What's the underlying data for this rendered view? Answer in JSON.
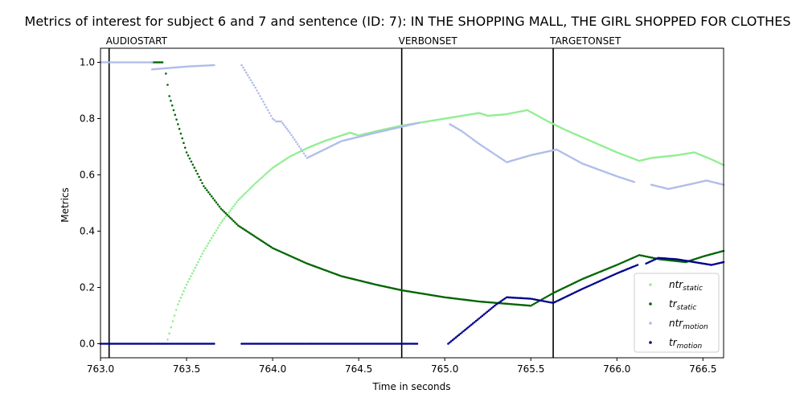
{
  "chart_data": {
    "type": "scatter",
    "title": "Metrics of interest for subject 6 and 7 and sentence (ID: 7): IN THE SHOPPING MALL, THE GIRL SHOPPED FOR CLOTHES",
    "xlabel": "Time in seconds",
    "ylabel": "Metrics",
    "xlim": [
      763.0,
      766.62
    ],
    "ylim": [
      -0.05,
      1.05
    ],
    "xticks": [
      763.0,
      763.5,
      764.0,
      764.5,
      765.0,
      765.5,
      766.0,
      766.5
    ],
    "xtick_labels": [
      "763.0",
      "763.5",
      "764.0",
      "764.5",
      "765.0",
      "765.5",
      "766.0",
      "766.5"
    ],
    "yticks": [
      0.0,
      0.2,
      0.4,
      0.6,
      0.8,
      1.0
    ],
    "ytick_labels": [
      "0.0",
      "0.2",
      "0.4",
      "0.6",
      "0.8",
      "1.0"
    ],
    "grid": false,
    "legend_position": "lower-right",
    "events": [
      {
        "label": "AUDIOSTART",
        "x": 763.05
      },
      {
        "label": "VERBONSET",
        "x": 764.75
      },
      {
        "label": "TARGETONSET",
        "x": 765.63
      }
    ],
    "series": [
      {
        "name": "ntr_static",
        "legend_base": "ntr",
        "legend_sub": "static",
        "color": "#90ee90",
        "segments": [
          [
            [
              763.39,
              0.015
            ],
            [
              763.42,
              0.08
            ],
            [
              763.45,
              0.14
            ],
            [
              763.5,
              0.21
            ],
            [
              763.55,
              0.27
            ],
            [
              763.6,
              0.33
            ],
            [
              763.7,
              0.43
            ],
            [
              763.8,
              0.51
            ],
            [
              763.9,
              0.57
            ],
            [
              764.0,
              0.625
            ],
            [
              764.1,
              0.665
            ],
            [
              764.2,
              0.695
            ],
            [
              764.3,
              0.72
            ],
            [
              764.4,
              0.74
            ],
            [
              764.45,
              0.75
            ],
            [
              764.5,
              0.74
            ],
            [
              764.6,
              0.755
            ],
            [
              764.75,
              0.775
            ],
            [
              764.9,
              0.79
            ],
            [
              765.0,
              0.8
            ],
            [
              765.1,
              0.81
            ],
            [
              765.2,
              0.82
            ],
            [
              765.25,
              0.81
            ],
            [
              765.35,
              0.815
            ],
            [
              765.48,
              0.83
            ],
            [
              765.6,
              0.79
            ],
            [
              765.7,
              0.76
            ],
            [
              765.85,
              0.72
            ],
            [
              766.0,
              0.68
            ],
            [
              766.13,
              0.65
            ],
            [
              766.2,
              0.66
            ],
            [
              766.35,
              0.67
            ],
            [
              766.45,
              0.68
            ],
            [
              766.55,
              0.655
            ],
            [
              766.62,
              0.635
            ]
          ]
        ]
      },
      {
        "name": "tr_static",
        "legend_base": "tr",
        "legend_sub": "static",
        "color": "#006400",
        "segments": [
          [
            [
              763.3,
              1.0
            ],
            [
              763.36,
              1.0
            ]
          ],
          [
            [
              763.38,
              0.96
            ],
            [
              763.4,
              0.88
            ],
            [
              763.45,
              0.78
            ],
            [
              763.5,
              0.68
            ],
            [
              763.6,
              0.56
            ],
            [
              763.7,
              0.48
            ],
            [
              763.8,
              0.42
            ],
            [
              764.0,
              0.34
            ],
            [
              764.2,
              0.285
            ],
            [
              764.4,
              0.24
            ],
            [
              764.6,
              0.21
            ],
            [
              764.75,
              0.19
            ],
            [
              765.0,
              0.165
            ],
            [
              765.2,
              0.15
            ],
            [
              765.4,
              0.14
            ],
            [
              765.5,
              0.135
            ],
            [
              765.63,
              0.18
            ],
            [
              765.8,
              0.23
            ],
            [
              766.0,
              0.28
            ],
            [
              766.13,
              0.315
            ],
            [
              766.25,
              0.3
            ],
            [
              766.4,
              0.29
            ],
            [
              766.5,
              0.31
            ],
            [
              766.62,
              0.33
            ]
          ]
        ]
      },
      {
        "name": "ntr_motion",
        "legend_base": "ntr",
        "legend_sub": "motion",
        "color": "#b0bcea",
        "segments": [
          [
            [
              763.0,
              1.0
            ],
            [
              763.3,
              1.0
            ]
          ],
          [
            [
              763.3,
              0.975
            ],
            [
              763.5,
              0.985
            ],
            [
              763.66,
              0.99
            ]
          ],
          [
            [
              763.82,
              0.99
            ],
            [
              763.9,
              0.91
            ],
            [
              764.0,
              0.8
            ],
            [
              764.02,
              0.79
            ],
            [
              764.05,
              0.79
            ],
            [
              764.1,
              0.75
            ],
            [
              764.2,
              0.66
            ],
            [
              764.3,
              0.69
            ],
            [
              764.4,
              0.72
            ],
            [
              764.6,
              0.75
            ],
            [
              764.85,
              0.785
            ]
          ],
          [
            [
              765.03,
              0.78
            ],
            [
              765.1,
              0.755
            ],
            [
              765.2,
              0.71
            ],
            [
              765.36,
              0.645
            ],
            [
              765.5,
              0.67
            ],
            [
              765.65,
              0.69
            ],
            [
              765.8,
              0.64
            ],
            [
              766.0,
              0.595
            ],
            [
              766.1,
              0.575
            ]
          ],
          [
            [
              766.2,
              0.565
            ],
            [
              766.3,
              0.55
            ],
            [
              766.45,
              0.57
            ],
            [
              766.52,
              0.58
            ],
            [
              766.62,
              0.565
            ]
          ]
        ]
      },
      {
        "name": "tr_motion",
        "legend_base": "tr",
        "legend_sub": "motion",
        "color": "#00008b",
        "segments": [
          [
            [
              763.0,
              0.0
            ],
            [
              763.66,
              0.0
            ]
          ],
          [
            [
              763.82,
              0.0
            ],
            [
              764.84,
              0.0
            ]
          ],
          [
            [
              765.02,
              0.0
            ],
            [
              765.1,
              0.04
            ],
            [
              765.2,
              0.09
            ],
            [
              765.3,
              0.14
            ],
            [
              765.36,
              0.165
            ],
            [
              765.5,
              0.16
            ],
            [
              765.63,
              0.145
            ],
            [
              765.8,
              0.195
            ],
            [
              766.0,
              0.25
            ],
            [
              766.1,
              0.275
            ],
            [
              766.12,
              0.28
            ]
          ],
          [
            [
              766.17,
              0.285
            ],
            [
              766.24,
              0.305
            ],
            [
              766.35,
              0.3
            ],
            [
              766.5,
              0.285
            ],
            [
              766.55,
              0.28
            ],
            [
              766.62,
              0.29
            ]
          ]
        ]
      }
    ]
  }
}
